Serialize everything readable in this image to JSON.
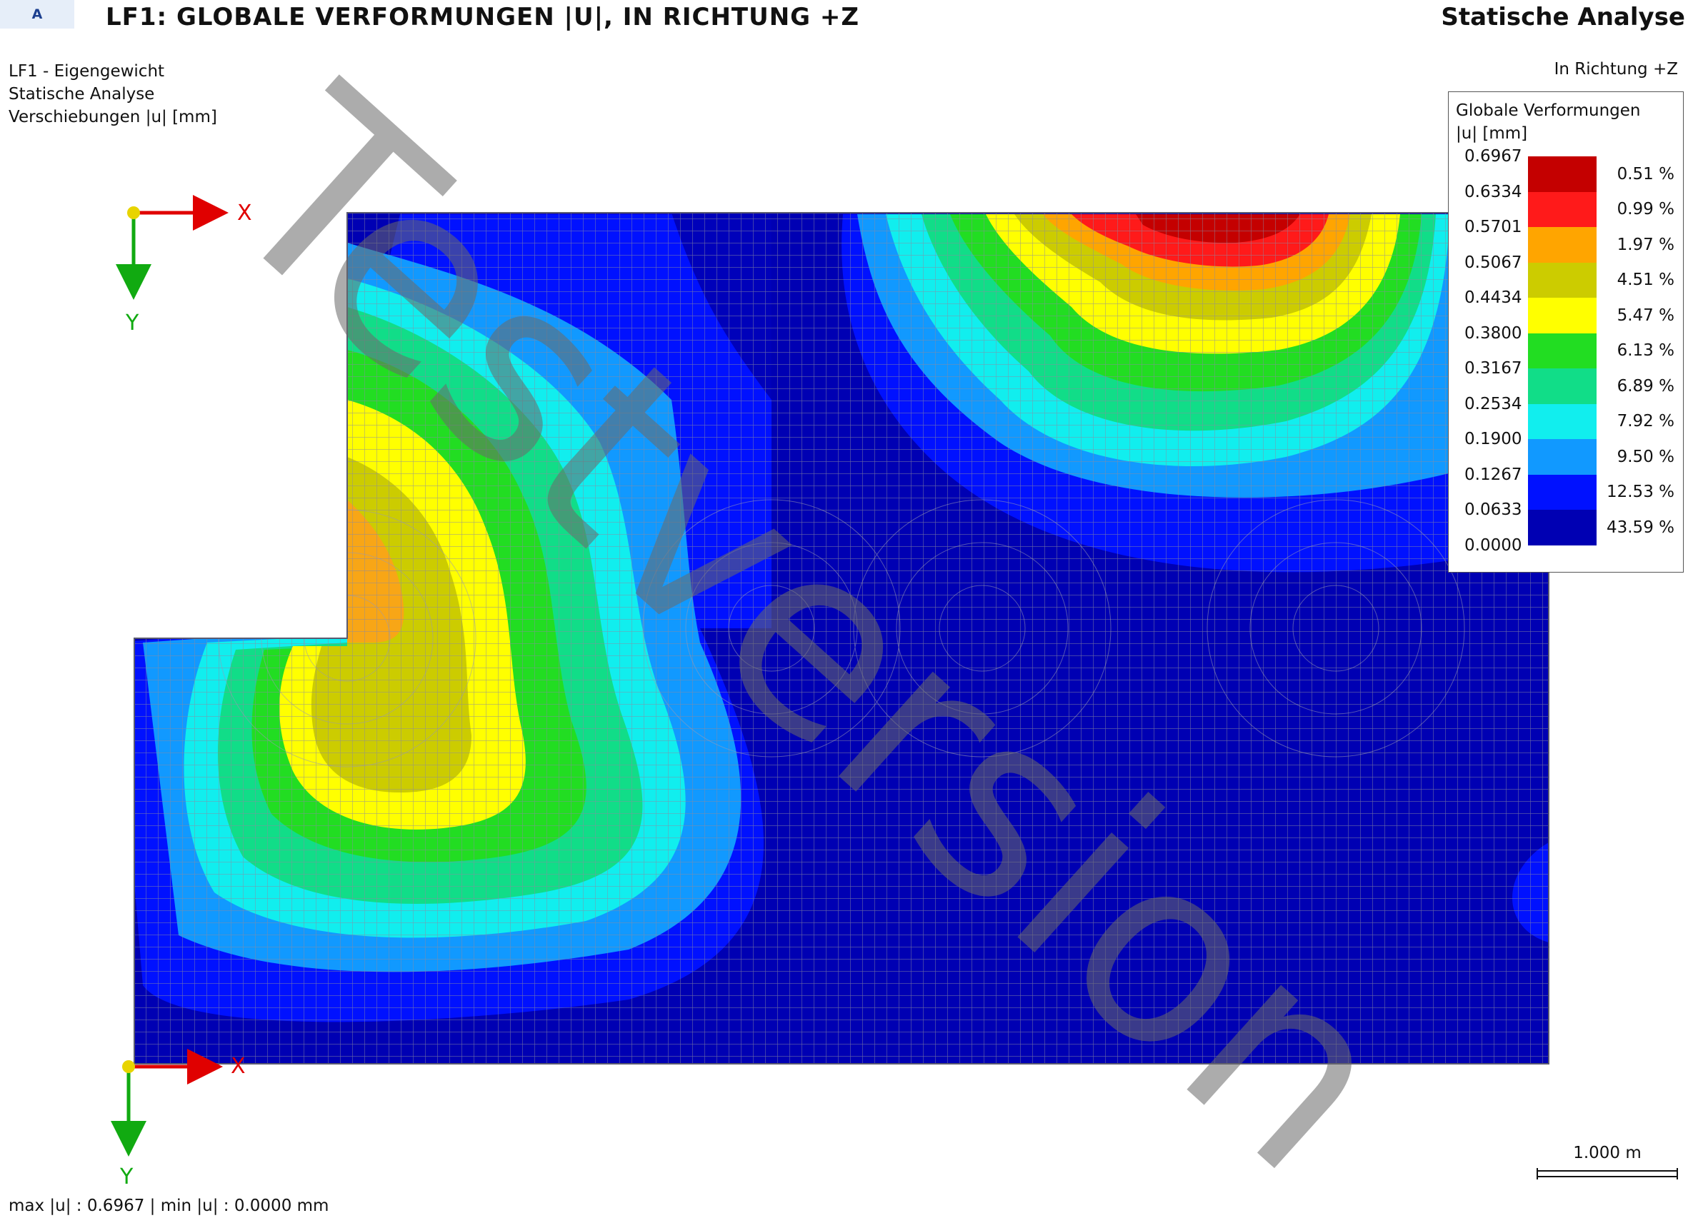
{
  "header": {
    "page_letter": "A",
    "title": "LF1: GLOBALE VERFORMUNGEN |U|, IN RICHTUNG +Z",
    "analysis_type": "Statische Analyse"
  },
  "info": {
    "load_case": "LF1 - Eigengewicht",
    "analysis": "Statische Analyse",
    "result_quantity": "Verschiebungen |u| [mm]",
    "direction": "In Richtung +Z"
  },
  "legend": {
    "title_line1": "Globale Verformungen",
    "title_line2": "|u| [mm]",
    "values": [
      "0.6967",
      "0.6334",
      "0.5701",
      "0.5067",
      "0.4434",
      "0.3800",
      "0.3167",
      "0.2534",
      "0.1900",
      "0.1267",
      "0.0633",
      "0.0000"
    ],
    "percentages": [
      "0.51 %",
      "0.99 %",
      "1.97 %",
      "4.51 %",
      "5.47 %",
      "6.13 %",
      "6.89 %",
      "7.92 %",
      "9.50 %",
      "12.53 %",
      "43.59 %"
    ],
    "colors": [
      "#c40000",
      "#ff1a1a",
      "#ffa500",
      "#cccc00",
      "#ffff00",
      "#22dd22",
      "#11dd88",
      "#11eeee",
      "#1199ff",
      "#0011ff",
      "#0000b3"
    ]
  },
  "axes": {
    "x_label": "X",
    "y_label": "Y",
    "x_color": "#e00000",
    "y_color": "#11aa11",
    "origin_color": "#e8d400"
  },
  "scale_bar": {
    "label": "1.000 m"
  },
  "footer": {
    "text": "max |u| : 0.6967 | min |u| : 0.0000 mm"
  },
  "watermark": {
    "text": "Testversion"
  },
  "plot": {
    "mesh_color": "#8a8aa0",
    "background_color": "#0000b3"
  }
}
